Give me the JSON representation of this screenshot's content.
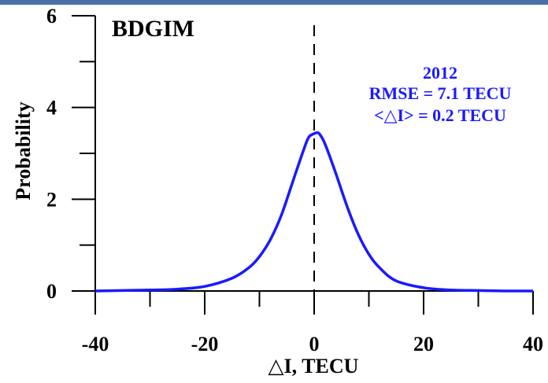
{
  "chart_data": {
    "type": "line",
    "title": "BDGIM",
    "xlabel": "△I, TECU",
    "ylabel": "Probability",
    "xlim": [
      -40,
      40
    ],
    "ylim": [
      0,
      6
    ],
    "x_ticks": [
      "-40",
      "-20",
      "0",
      "20",
      "40"
    ],
    "y_ticks": [
      "0",
      "2",
      "4",
      "6"
    ],
    "annotation": [
      "2012",
      "RMSE = 7.1 TECU",
      "<△I> = 0.2 TECU"
    ],
    "reference_line_x": 0,
    "series": [
      {
        "x": [
          -40,
          -35,
          -30,
          -25,
          -20,
          -15,
          -12,
          -10,
          -8,
          -6,
          -4,
          -2,
          -1,
          0,
          0.5,
          1,
          2,
          4,
          6,
          8,
          10,
          12,
          15,
          20,
          25,
          30,
          35,
          40
        ],
        "values": [
          0.0,
          0.01,
          0.02,
          0.04,
          0.1,
          0.28,
          0.5,
          0.75,
          1.12,
          1.65,
          2.35,
          3.05,
          3.35,
          3.43,
          3.45,
          3.42,
          3.2,
          2.55,
          1.85,
          1.25,
          0.8,
          0.5,
          0.22,
          0.07,
          0.02,
          0.01,
          0.0,
          0.0
        ]
      }
    ]
  },
  "colors": {
    "curve": "#1a1aff",
    "annotation": "#1a1aff",
    "axis": "#000000",
    "top_bar": "#4a6fa5"
  }
}
